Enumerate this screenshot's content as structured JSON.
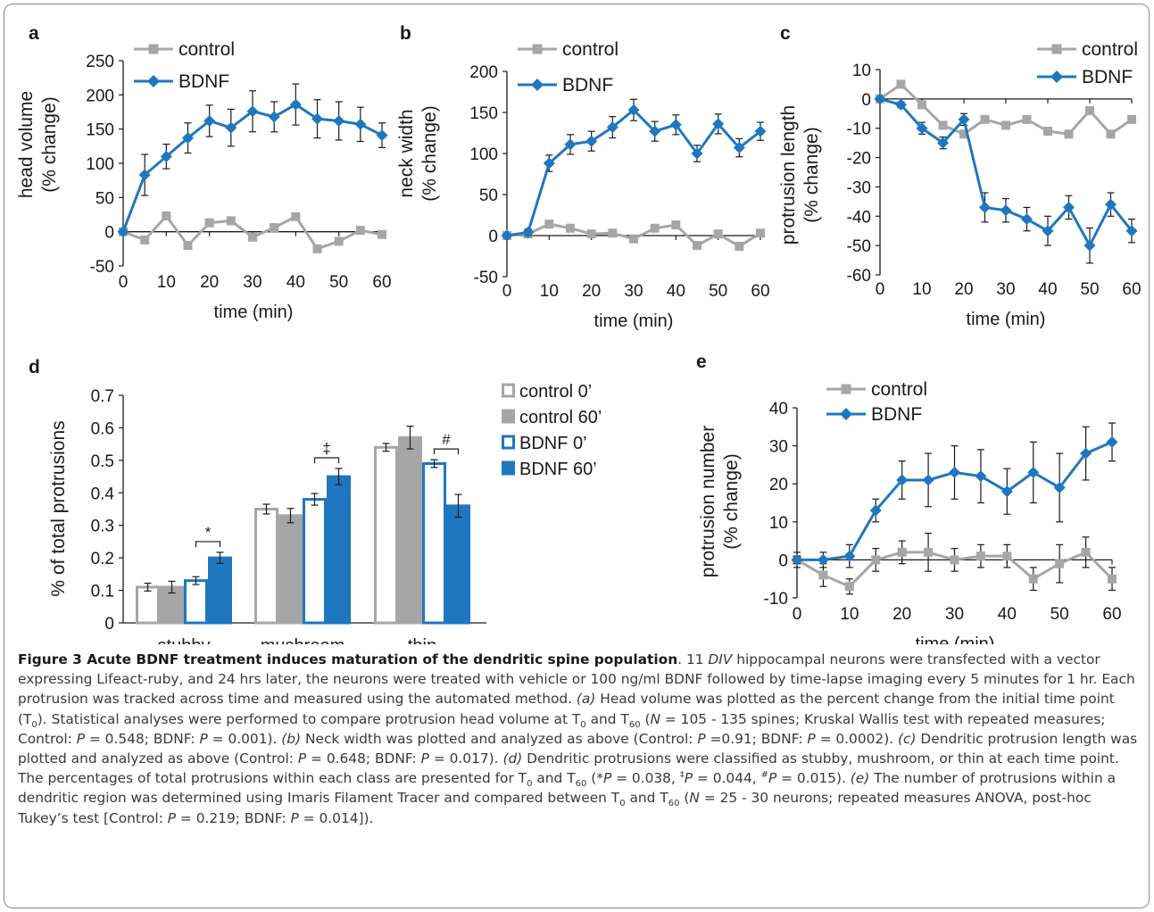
{
  "colors": {
    "control": "#a6a6a6",
    "bdnf": "#1f77c0",
    "axis": "#1a1a1a",
    "caption": "#3a3a3a"
  },
  "chart_data": [
    {
      "panel": "a",
      "type": "line",
      "x": [
        0,
        5,
        10,
        15,
        20,
        25,
        30,
        35,
        40,
        45,
        50,
        55,
        60
      ],
      "xlabel": "time (min)",
      "ylabel": [
        "head volume",
        "(% change)"
      ],
      "ylim": [
        -50,
        250
      ],
      "yticks": [
        -50,
        0,
        50,
        100,
        150,
        200,
        250
      ],
      "xticks": [
        0,
        10,
        20,
        30,
        40,
        50,
        60
      ],
      "legend": "top-left",
      "series": [
        {
          "name": "control",
          "values": [
            0,
            -12,
            23,
            -20,
            13,
            16,
            -8,
            6,
            22,
            -25,
            -14,
            2,
            -4
          ],
          "err": []
        },
        {
          "name": "BDNF",
          "values": [
            0,
            83,
            110,
            137,
            162,
            152,
            176,
            168,
            186,
            165,
            162,
            157,
            141
          ],
          "err": [
            0,
            30,
            18,
            22,
            23,
            27,
            30,
            22,
            30,
            28,
            28,
            25,
            18
          ]
        }
      ]
    },
    {
      "panel": "b",
      "type": "line",
      "x": [
        0,
        5,
        10,
        15,
        20,
        25,
        30,
        35,
        40,
        45,
        50,
        55,
        60
      ],
      "xlabel": "time (min)",
      "ylabel": [
        "neck width",
        "(% change)"
      ],
      "ylim": [
        -50,
        200
      ],
      "yticks": [
        -50,
        0,
        50,
        100,
        150,
        200
      ],
      "xticks": [
        0,
        10,
        20,
        30,
        40,
        50,
        60
      ],
      "legend": "top-left",
      "series": [
        {
          "name": "control",
          "values": [
            0,
            2,
            14,
            9,
            2,
            3,
            -4,
            9,
            13,
            -12,
            2,
            -13,
            3
          ],
          "err": []
        },
        {
          "name": "BDNF",
          "values": [
            0,
            4,
            88,
            111,
            115,
            132,
            153,
            127,
            135,
            100,
            136,
            107,
            127
          ],
          "err": [
            0,
            4,
            10,
            12,
            12,
            13,
            13,
            12,
            12,
            10,
            12,
            11,
            11
          ]
        }
      ]
    },
    {
      "panel": "c",
      "type": "line",
      "x": [
        0,
        5,
        10,
        15,
        20,
        25,
        30,
        35,
        40,
        45,
        50,
        55,
        60
      ],
      "xlabel": "time (min)",
      "ylabel": [
        "protrusion length",
        "(% change)"
      ],
      "ylim": [
        -60,
        10
      ],
      "yticks": [
        -60,
        -50,
        -40,
        -30,
        -20,
        -10,
        0,
        10
      ],
      "xticks": [
        0,
        10,
        20,
        30,
        40,
        50,
        60
      ],
      "legend": "top-right",
      "series": [
        {
          "name": "control",
          "values": [
            0,
            5,
            -2,
            -9,
            -12,
            -7,
            -9,
            -7,
            -11,
            -12,
            -4,
            -12,
            -7
          ],
          "err": []
        },
        {
          "name": "BDNF",
          "values": [
            0,
            -2,
            -10,
            -15,
            -7,
            -37,
            -38,
            -41,
            -45,
            -37,
            -50,
            -36,
            -45
          ],
          "err": [
            0,
            1,
            2,
            2,
            2,
            5,
            4,
            4,
            5,
            4,
            6,
            4,
            4
          ]
        }
      ]
    },
    {
      "panel": "d",
      "type": "bar",
      "categories": [
        "stubby",
        "mushroom",
        "thin"
      ],
      "ylabel": "% of total protrusions",
      "ylim": [
        0,
        0.7
      ],
      "yticks": [
        "0",
        "0.1",
        "0.2",
        "0.3",
        "0.4",
        "0.5",
        "0.6",
        "0.7"
      ],
      "legend": "top-right",
      "series": [
        {
          "name": "control 0’",
          "style": "open-gray",
          "values": [
            0.11,
            0.35,
            0.54
          ],
          "err": [
            0.012,
            0.015,
            0.012
          ]
        },
        {
          "name": "control 60’",
          "style": "filled-gray",
          "values": [
            0.11,
            0.33,
            0.57
          ],
          "err": [
            0.018,
            0.022,
            0.035
          ]
        },
        {
          "name": "BDNF 0’",
          "style": "open-blue",
          "values": [
            0.13,
            0.38,
            0.49
          ],
          "err": [
            0.012,
            0.018,
            0.012
          ]
        },
        {
          "name": "BDNF 60’",
          "style": "filled-blue",
          "values": [
            0.2,
            0.45,
            0.36
          ],
          "err": [
            0.017,
            0.025,
            0.035
          ]
        }
      ],
      "significance": [
        "*",
        "‡",
        "#"
      ]
    },
    {
      "panel": "e",
      "type": "line",
      "x": [
        0,
        5,
        10,
        15,
        20,
        25,
        30,
        35,
        40,
        45,
        50,
        55,
        60
      ],
      "xlabel": "time (min)",
      "ylabel": [
        "protrusion number",
        "(% change)"
      ],
      "ylim": [
        -10,
        40
      ],
      "yticks": [
        -10,
        0,
        10,
        20,
        30,
        40
      ],
      "xticks": [
        0,
        10,
        20,
        30,
        40,
        50,
        60
      ],
      "legend": "top-left",
      "series": [
        {
          "name": "control",
          "values": [
            0,
            -4,
            -7,
            0,
            2,
            2,
            0,
            1,
            1,
            -5,
            -1,
            2,
            -5
          ],
          "err": [
            2,
            3,
            2,
            3,
            3,
            5,
            3,
            3,
            3,
            3,
            5,
            4,
            3
          ]
        },
        {
          "name": "BDNF",
          "values": [
            0,
            0,
            1,
            13,
            21,
            21,
            23,
            22,
            18,
            23,
            19,
            28,
            31
          ],
          "err": [
            1,
            2,
            3,
            3,
            5,
            7,
            7,
            7,
            6,
            8,
            9,
            7,
            5
          ]
        }
      ]
    }
  ],
  "caption": {
    "title": "Figure 3 Acute BDNF treatment induces maturation of the dendritic spine population",
    "s1": ". 11 ",
    "div": "DIV",
    "s2": " hippocampal neurons were transfected with a vector expressing Lifeact-ruby, and 24 hrs later, the neurons were treated with vehicle or 100 ng/ml BDNF followed by time-lapse imaging every 5 minutes for 1 hr. Each protrusion was tracked across time and measured using the automated method. ",
    "a_label": "(a)",
    "s3": " Head volume was plotted as the percent change from the initial time point (T",
    "sub0": "0",
    "s4": "). Statistical analyses were performed to compare protrusion head volume at T",
    "s5": " and T",
    "sub60": "60",
    "s6": " (",
    "N": "N",
    "s7": " = 105 - 135 spines; Kruskal Wallis test with repeated measures; Control: ",
    "P": "P",
    "s8": " = 0.548; BDNF: ",
    "s9": " = 0.001). ",
    "b_label": "(b)",
    "s10": " Neck width was plotted and analyzed as above (Control: ",
    "s11": " =0.91; BDNF: ",
    "s12": " = 0.0002). ",
    "c_label": "(c)",
    "s13": " Dendritic protrusion length was plotted and analyzed as above (Control: ",
    "s14": " = 0.648; BDNF: ",
    "s15": " = 0.017). ",
    "d_label": "(d)",
    "s16": " Dendritic protrusions were classified as stubby, mushroom, or thin at each time point. The percentages of total protrusions within each class are presented for T",
    "s17": " and T",
    "s18": " (*",
    "s19": " = 0.038, ",
    "dagger": "‡",
    "s20": " = 0.044, ",
    "hash": "#",
    "s21": " = 0.015). ",
    "e_label": "(e)",
    "s22": " The number of protrusions within a dendritic region was determined using Imaris Filament Tracer and compared between T",
    "s23": " and T",
    "s24": " (",
    "s25": " = 25 - 30 neurons; repeated measures ANOVA, post-hoc Tukey’s test [Control: ",
    "s26": " = 0.219; BDNF: ",
    "s27": " = 0.014])."
  }
}
